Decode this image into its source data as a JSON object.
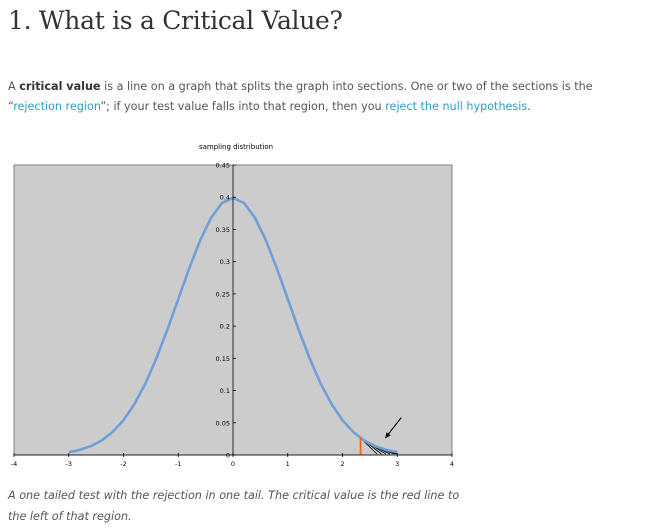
{
  "heading": "1. What is a Critical Value?",
  "intro": {
    "part1": "A ",
    "bold": "critical value",
    "part2": " is a line on a graph that splits the graph into sections. One or two of the sections is the “",
    "link1": "rejection region",
    "part3": "”; if your test value falls into that region, then you ",
    "link2": "reject the null hypothesis",
    "part4": "."
  },
  "chart_data": {
    "type": "line",
    "title": "sampling distribution",
    "xlim": [
      -4,
      4
    ],
    "ylim": [
      0,
      0.45
    ],
    "x_ticks": [
      "-4",
      "-3",
      "-2",
      "-1",
      "0",
      "1",
      "2",
      "3",
      "4"
    ],
    "y_ticks": [
      "0",
      "0.05",
      "0.1",
      "0.15",
      "0.2",
      "0.25",
      "0.3",
      "0.35",
      "0.4",
      "0.45"
    ],
    "series": [
      {
        "x": [
          -3.0,
          -2.8,
          -2.6,
          -2.4,
          -2.2,
          -2.0,
          -1.8,
          -1.6,
          -1.4,
          -1.2,
          -1.0,
          -0.8,
          -0.6,
          -0.4,
          -0.2,
          0.0,
          0.2,
          0.4,
          0.6,
          0.8,
          1.0,
          1.2,
          1.4,
          1.6,
          1.8,
          2.0,
          2.2,
          2.4,
          2.6,
          2.8,
          3.0
        ],
        "y": [
          0.0044,
          0.0079,
          0.0136,
          0.0224,
          0.0355,
          0.054,
          0.079,
          0.1109,
          0.1497,
          0.1942,
          0.242,
          0.2897,
          0.3332,
          0.3683,
          0.391,
          0.3989,
          0.391,
          0.3683,
          0.3332,
          0.2897,
          0.242,
          0.1942,
          0.1497,
          0.1109,
          0.079,
          0.054,
          0.0355,
          0.0224,
          0.0136,
          0.0079,
          0.0044
        ]
      }
    ],
    "critical_value": 2.33,
    "rejection_region": "right tail",
    "grid": false,
    "plot_background": "#cccccc",
    "curve_color": "#6f9fd8",
    "critical_line_color": "#ff6600"
  },
  "caption": "A one tailed test with the rejection in one tail. The critical value is the red line to the left of that region."
}
